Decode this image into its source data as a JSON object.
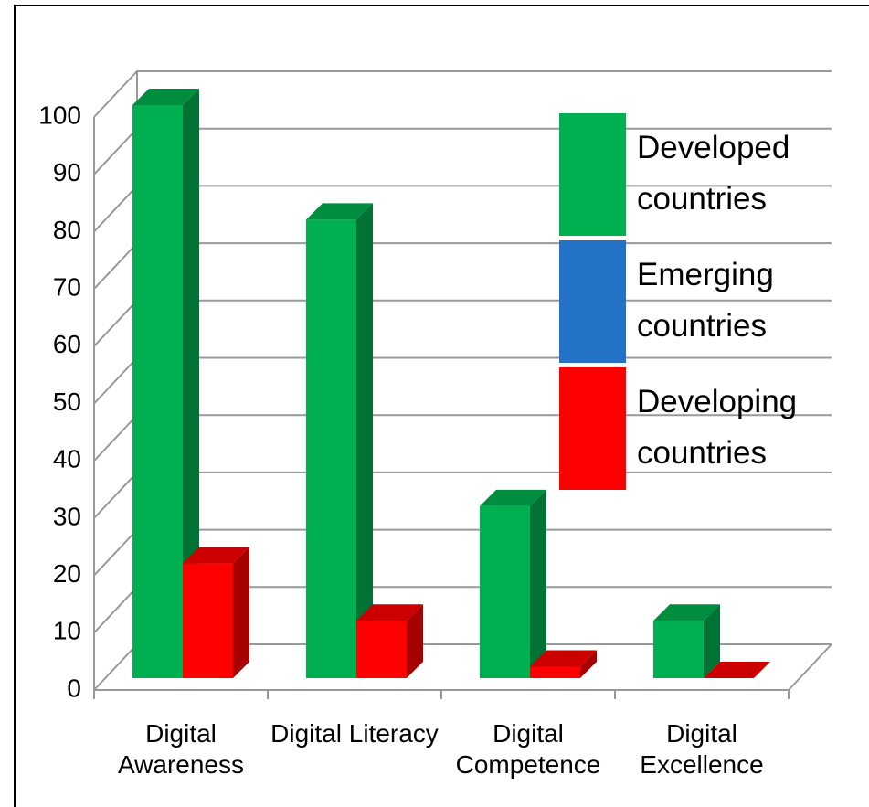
{
  "chart_data": {
    "type": "bar3d",
    "categories": [
      "Digital Awareness",
      "Digital Literacy",
      "Digital Competence",
      "Digital Excellence"
    ],
    "series": [
      {
        "name": "Developed countries",
        "color": "#00b050",
        "values": [
          100,
          80,
          30,
          10
        ]
      },
      {
        "name": "Emerging countries",
        "color": "#2472c8",
        "values": [
          null,
          null,
          null,
          null
        ]
      },
      {
        "name": "Developing countries",
        "color": "#ff0000",
        "values": [
          20,
          10,
          2,
          0
        ]
      }
    ],
    "ylim": [
      0,
      100
    ],
    "yticks": [
      0,
      10,
      20,
      30,
      40,
      50,
      60,
      70,
      80,
      90,
      100
    ],
    "grid": true,
    "legend": "right"
  }
}
